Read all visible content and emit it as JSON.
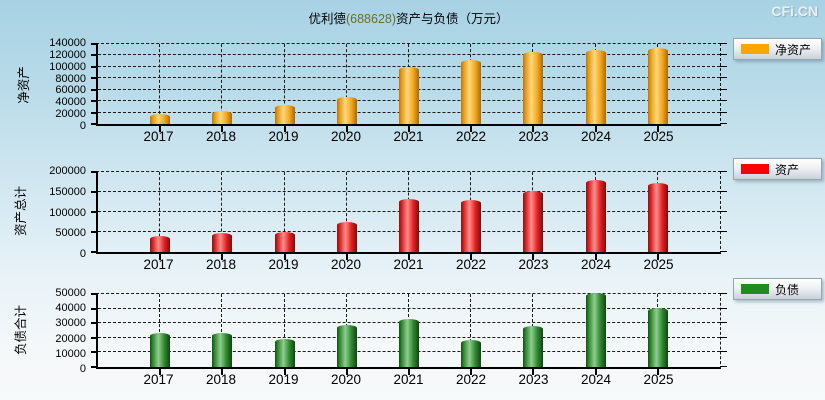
{
  "page": {
    "title": {
      "company": "优利德",
      "code": "(688628)",
      "rest": "资产与负债（万元）"
    },
    "logo": "CFi.CN"
  },
  "chart_data": [
    {
      "id": "net-assets",
      "type": "bar",
      "title": "",
      "ylabel": "净资产",
      "legend": "净资产",
      "color": "#FFA500",
      "categories": [
        "2017",
        "2018",
        "2019",
        "2020",
        "2021",
        "2022",
        "2023",
        "2024",
        "2025"
      ],
      "values": [
        11500,
        17500,
        28000,
        42500,
        95000,
        107000,
        120000,
        125000,
        128500
      ],
      "ylim": [
        0,
        140000
      ],
      "yticks": [
        0,
        20000,
        40000,
        60000,
        80000,
        100000,
        120000,
        140000
      ],
      "grid": "dashed",
      "legend_position": "right"
    },
    {
      "id": "total-assets",
      "type": "bar",
      "title": "",
      "ylabel": "资产总计",
      "legend": "资产",
      "color": "#FF0000",
      "categories": [
        "2017",
        "2018",
        "2019",
        "2020",
        "2021",
        "2022",
        "2023",
        "2024",
        "2025"
      ],
      "values": [
        32000,
        39000,
        43500,
        67000,
        125000,
        123000,
        145000,
        173000,
        166000
      ],
      "ylim": [
        0,
        200000
      ],
      "yticks": [
        0,
        50000,
        100000,
        150000,
        200000
      ],
      "grid": "dashed",
      "legend_position": "right"
    },
    {
      "id": "total-liabilities",
      "type": "bar",
      "title": "",
      "ylabel": "负债合计",
      "legend": "负债",
      "color": "#1E8C1E",
      "categories": [
        "2017",
        "2018",
        "2019",
        "2020",
        "2021",
        "2022",
        "2023",
        "2024",
        "2025"
      ],
      "values": [
        21000,
        21000,
        17000,
        27000,
        30500,
        16500,
        26000,
        48500,
        38500
      ],
      "ylim": [
        0,
        50000
      ],
      "yticks": [
        0,
        10000,
        20000,
        30000,
        40000,
        50000
      ],
      "grid": "dashed",
      "legend_position": "right"
    }
  ]
}
